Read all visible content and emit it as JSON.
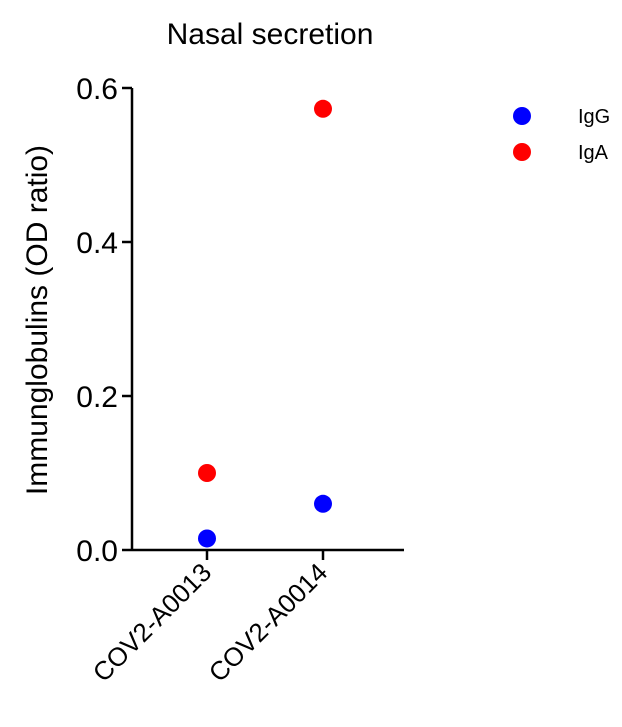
{
  "chart_data": {
    "type": "scatter",
    "title": "Nasal secretion",
    "xlabel": "",
    "ylabel": "Immunglobulins (OD ratio)",
    "categories": [
      "COV2-A0013",
      "COV2-A0014"
    ],
    "ylim": [
      0,
      0.6
    ],
    "yticks": [
      "0.0",
      "0.2",
      "0.4",
      "0.6"
    ],
    "grid": false,
    "legend_position": "top-right",
    "series": [
      {
        "name": "IgG",
        "color": "#0000ff",
        "values": [
          0.015,
          0.06
        ]
      },
      {
        "name": "IgA",
        "color": "#ff0000",
        "values": [
          0.1,
          0.573
        ]
      }
    ]
  }
}
